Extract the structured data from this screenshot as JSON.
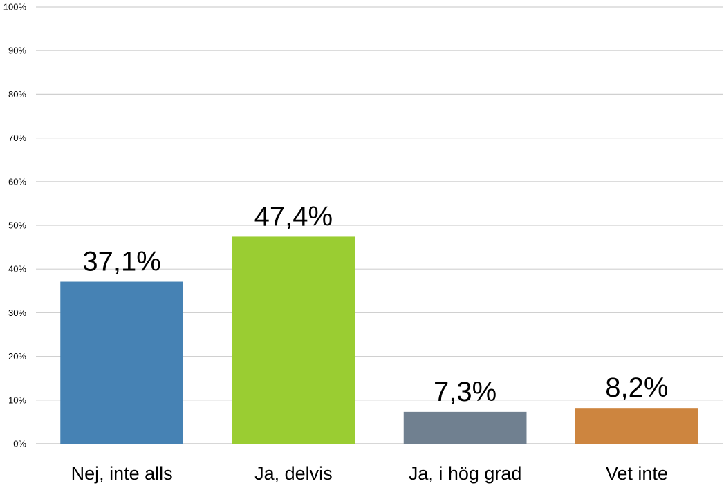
{
  "chart_data": {
    "type": "bar",
    "categories": [
      "Nej, inte alls",
      "Ja, delvis",
      "Ja, i hög grad",
      "Vet inte"
    ],
    "values": [
      37.1,
      47.4,
      7.3,
      8.2
    ],
    "data_labels": [
      "37,1%",
      "47,4%",
      "7,3%",
      "8,2%"
    ],
    "colors": [
      "#4682b4",
      "#9acd32",
      "#708090",
      "#cd853f"
    ],
    "ylim": [
      0,
      100
    ],
    "yticks": [
      0,
      10,
      20,
      30,
      40,
      50,
      60,
      70,
      80,
      90,
      100
    ],
    "ytick_labels": [
      "0%",
      "10%",
      "20%",
      "30%",
      "40%",
      "50%",
      "60%",
      "70%",
      "80%",
      "90%",
      "100%"
    ],
    "grid": true,
    "legend": "none",
    "title": "",
    "xlabel": "",
    "ylabel": ""
  }
}
